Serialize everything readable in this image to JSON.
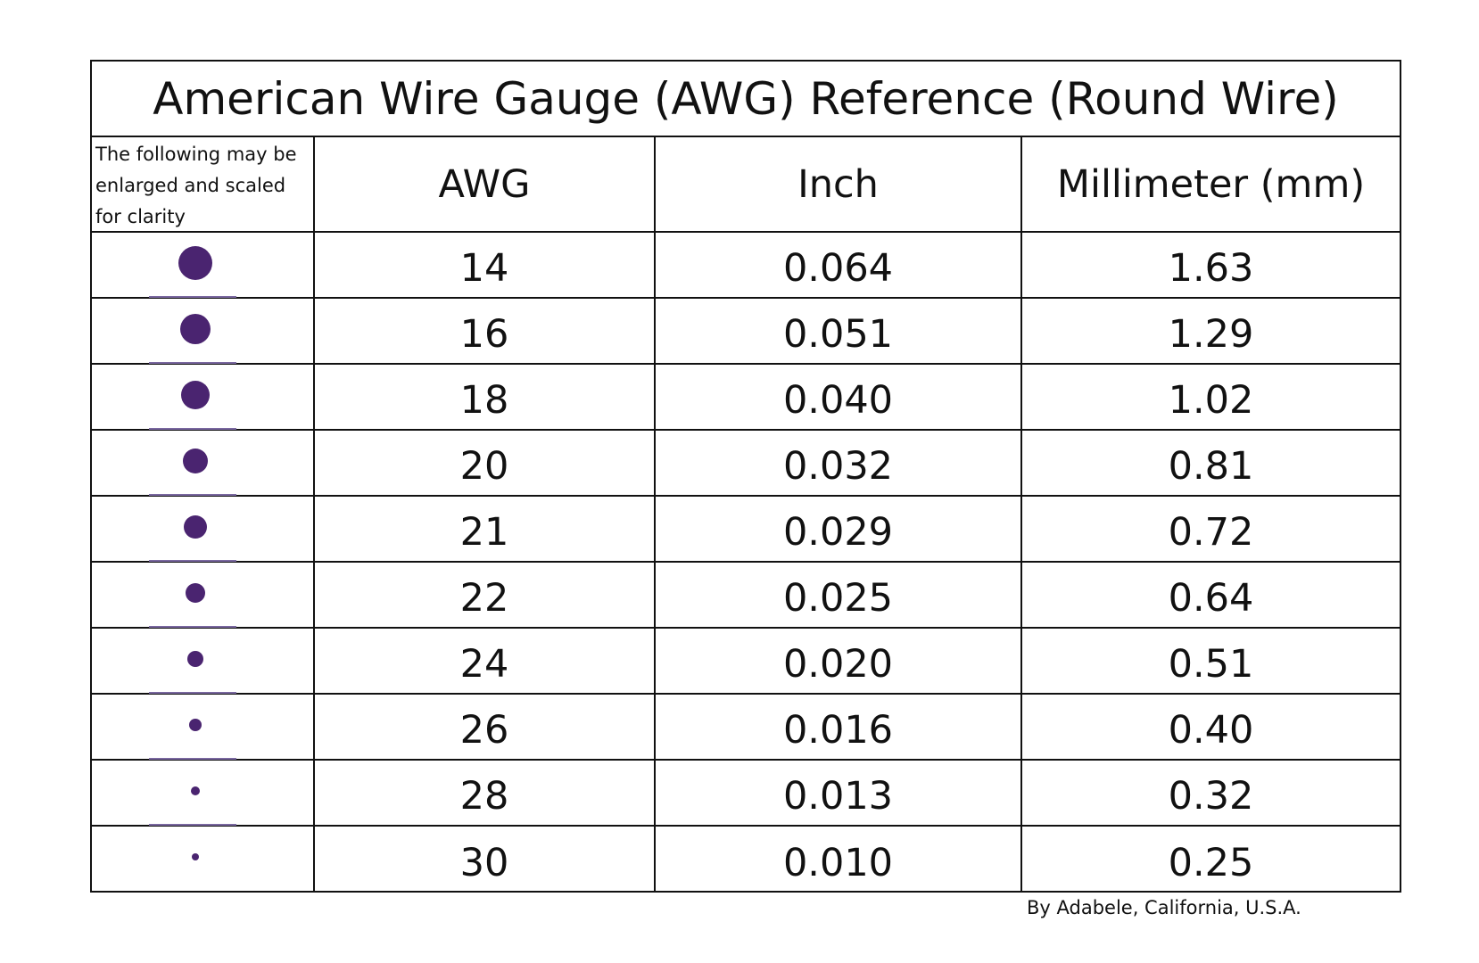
{
  "header": {
    "title": "American Wire Gauge (AWG) Reference (Round Wire)"
  },
  "table": {
    "columns": [
      "The following may be enlarged and scaled for clarity",
      "AWG",
      "Inch",
      "Millimeter (mm)"
    ],
    "rows": [
      [
        "14",
        "0.064",
        "1.63"
      ],
      [
        "16",
        "0.051",
        "1.29"
      ],
      [
        "18",
        "0.040",
        "1.02"
      ],
      [
        "20",
        "0.032",
        "0.81"
      ],
      [
        "21",
        "0.029",
        "0.72"
      ],
      [
        "22",
        "0.025",
        "0.64"
      ],
      [
        "24",
        "0.020",
        "0.51"
      ],
      [
        "26",
        "0.016",
        "0.40"
      ],
      [
        "28",
        "0.013",
        "0.32"
      ],
      [
        "30",
        "0.010",
        "0.25"
      ]
    ]
  },
  "footer": "By Adabele, California, U.S.A."
}
